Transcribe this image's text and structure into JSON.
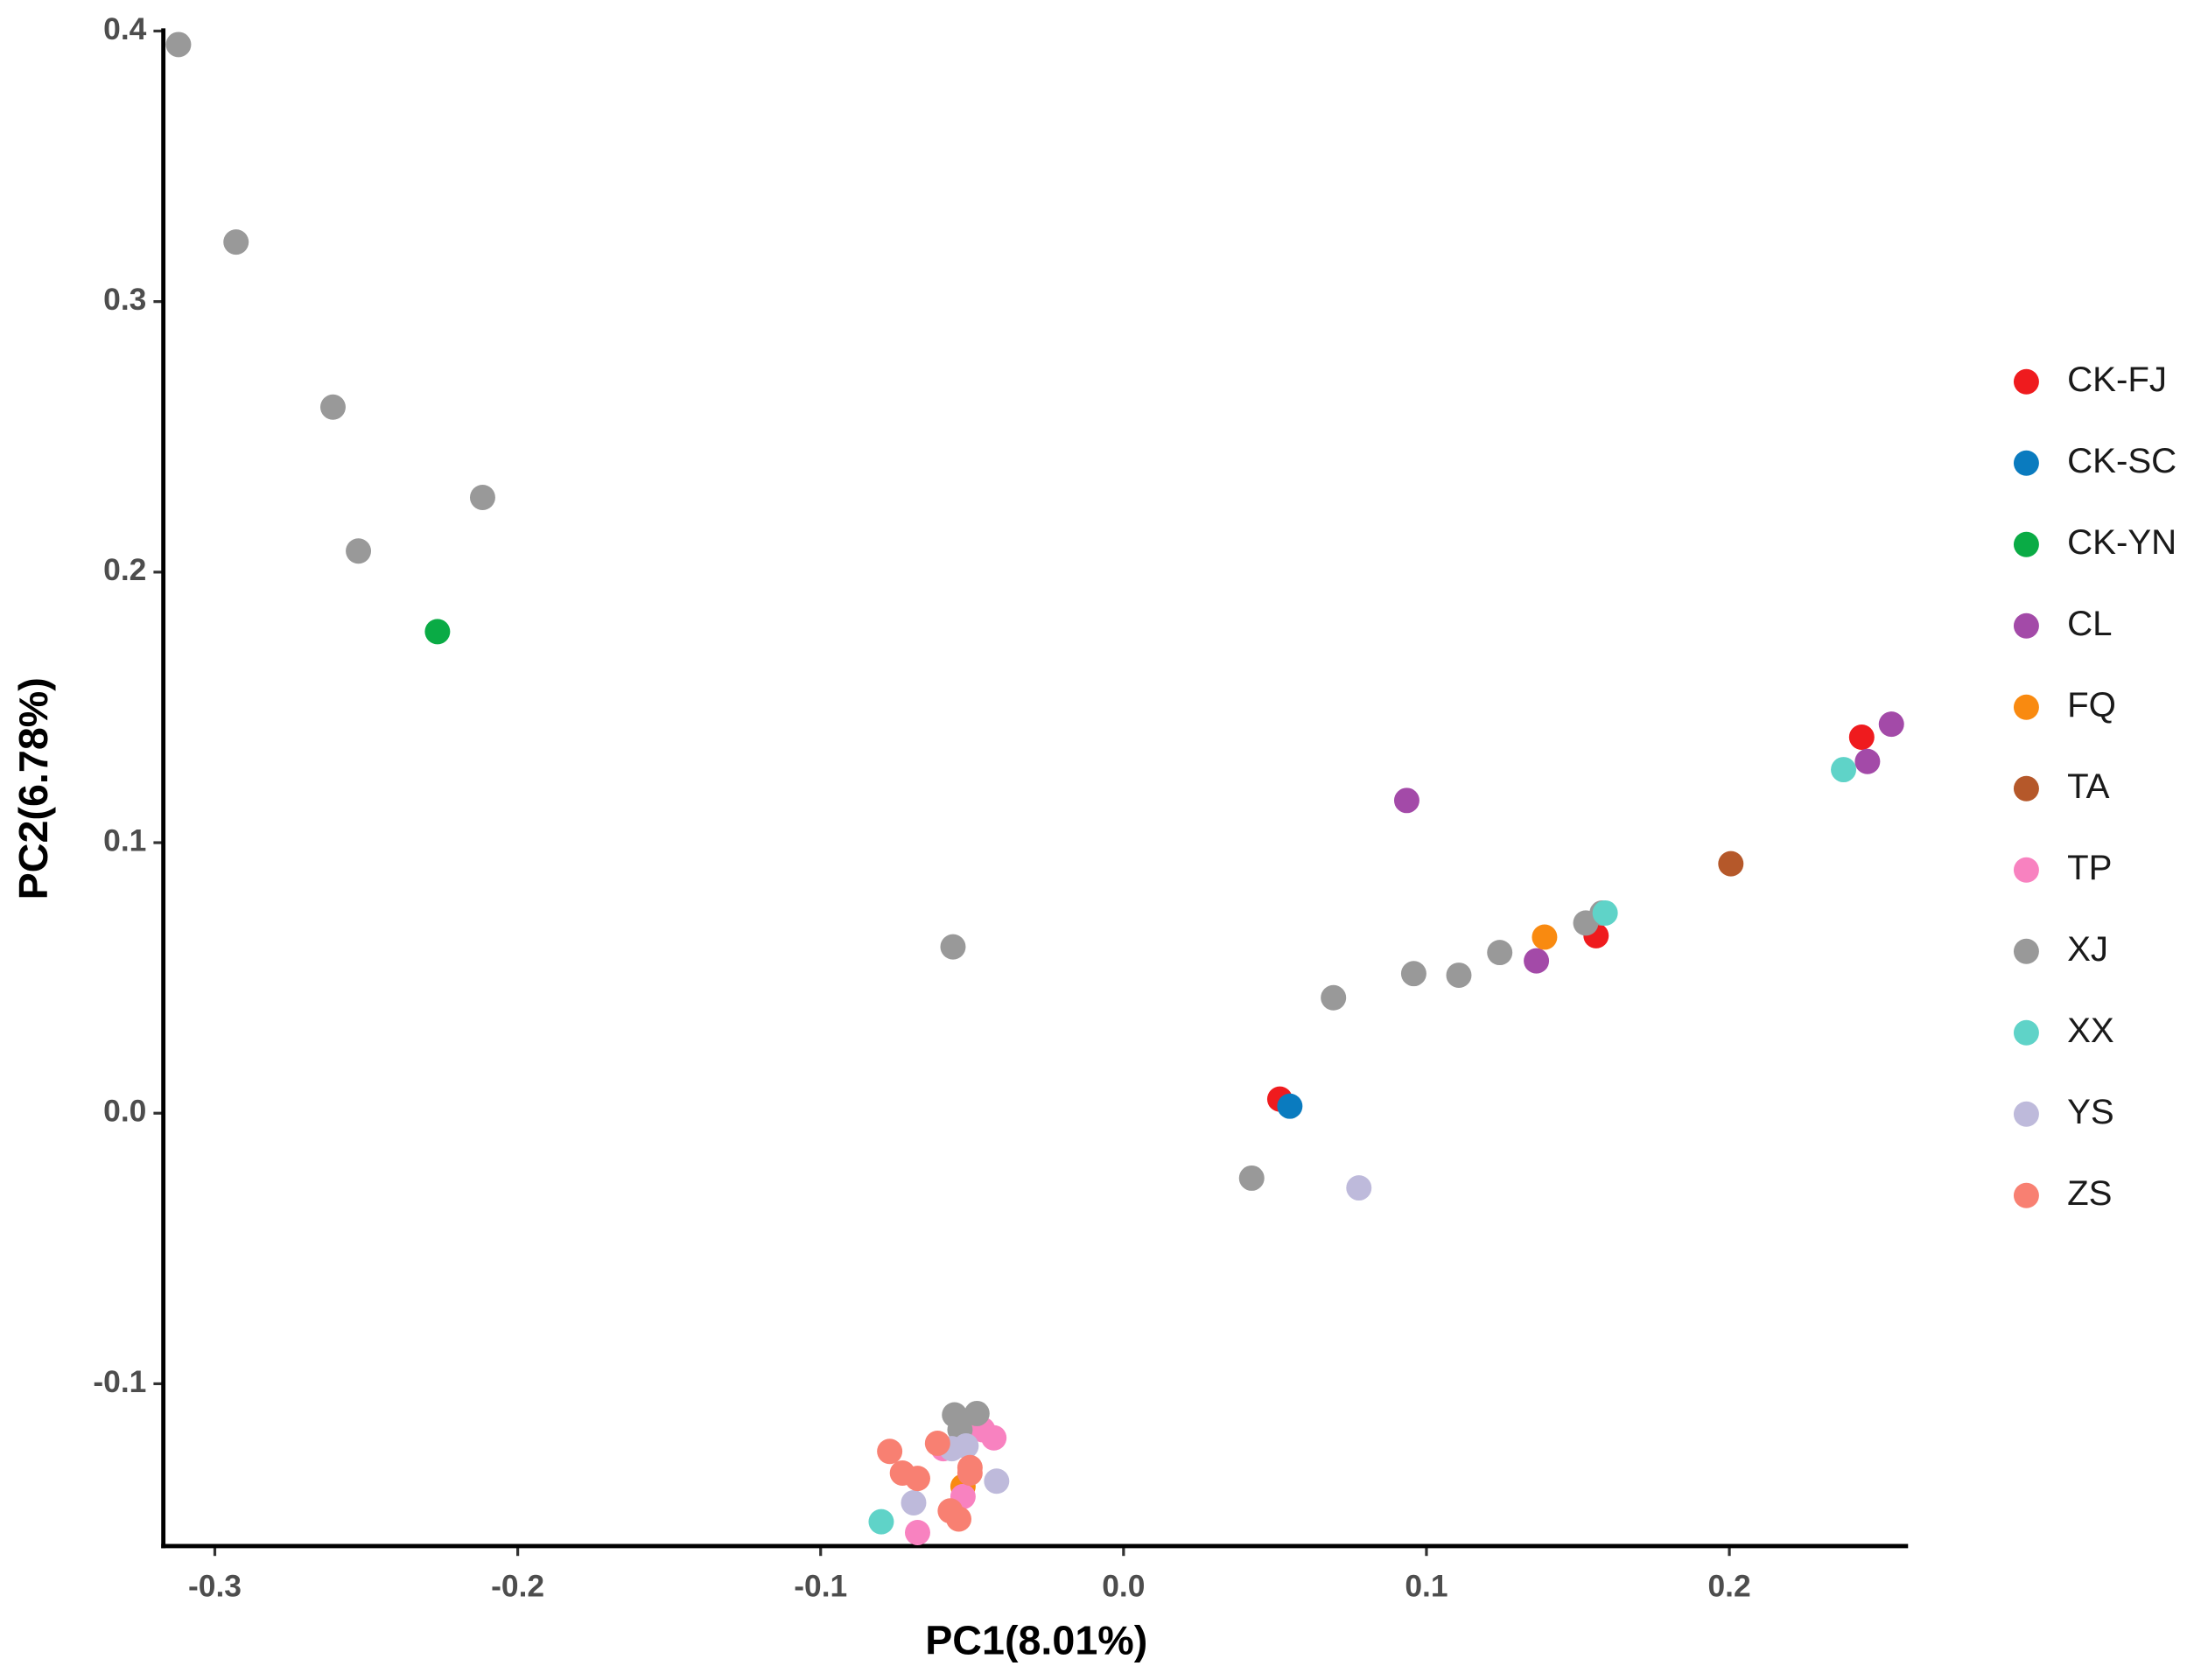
{
  "chart_data": {
    "type": "scatter",
    "x_label": "PC1(8.01%)",
    "y_label": "PC2(6.78%)",
    "xlim": [
      -0.317,
      0.259
    ],
    "ylim": [
      -0.16,
      0.401
    ],
    "xticks": [
      -0.3,
      -0.2,
      -0.1,
      {
        "value": 0,
        "label": "0.0"
      },
      0.1,
      0.2
    ],
    "yticks": [
      -0.1,
      {
        "value": 0,
        "label": "0.0"
      },
      0.1,
      0.2,
      0.3,
      0.4
    ],
    "grid": false,
    "legend": "right",
    "series": [
      {
        "name": "CK-FJ",
        "color": "#ef1b1e",
        "x": [
          0.0516,
          0.156,
          0.2437
        ],
        "y": [
          0.0052,
          0.0656,
          0.139
        ]
      },
      {
        "name": "CK-SC",
        "color": "#0a7bbf",
        "x": [
          0.0549
        ],
        "y": [
          0.0026
        ]
      },
      {
        "name": "CK-YN",
        "color": "#0aab45",
        "x": [
          -0.2265
        ],
        "y": [
          0.178
        ]
      },
      {
        "name": "CL",
        "color": "#a34aa8",
        "x": [
          0.0935,
          0.1363,
          0.2456,
          0.2535
        ],
        "y": [
          0.1156,
          0.0563,
          0.13,
          0.1438
        ]
      },
      {
        "name": "FQ",
        "color": "#f98a10",
        "x": [
          0.139,
          -0.053
        ],
        "y": [
          0.0651,
          -0.138
        ]
      },
      {
        "name": "TA",
        "color": "#b5582a",
        "x": [
          0.2005
        ],
        "y": [
          0.0922
        ]
      },
      {
        "name": "TP",
        "color": "#f882c0",
        "x": [
          -0.0428,
          -0.0465,
          -0.053,
          -0.068,
          -0.0595
        ],
        "y": [
          -0.12,
          -0.117,
          -0.1417,
          -0.155,
          -0.124
        ]
      },
      {
        "name": "XJ",
        "color": "#999999",
        "x": [
          -0.312,
          -0.293,
          -0.261,
          -0.2116,
          -0.2526,
          -0.0563,
          0.0693,
          0.0958,
          0.1107,
          0.1242,
          0.1526,
          0.158,
          0.0423,
          -0.0558,
          -0.0484,
          -0.054
        ],
        "y": [
          0.395,
          0.322,
          0.261,
          0.2276,
          0.2078,
          0.0615,
          0.0427,
          0.0516,
          0.051,
          0.0594,
          0.0703,
          0.074,
          -0.024,
          -0.1115,
          -0.111,
          -0.117
        ]
      },
      {
        "name": "XX",
        "color": "#5fd3c8",
        "x": [
          0.159,
          0.2377,
          -0.08
        ],
        "y": [
          0.074,
          0.127,
          -0.151
        ]
      },
      {
        "name": "YS",
        "color": "#bebadb",
        "x": [
          0.0777,
          -0.0419,
          -0.0693,
          -0.052,
          -0.0567
        ],
        "y": [
          -0.0276,
          -0.136,
          -0.144,
          -0.123,
          -0.124
        ]
      },
      {
        "name": "ZS",
        "color": "#f88072",
        "x": [
          -0.0772,
          -0.0614,
          -0.073,
          -0.068,
          -0.0507,
          -0.0507,
          -0.0572,
          -0.0544
        ],
        "y": [
          -0.125,
          -0.122,
          -0.133,
          -0.135,
          -0.131,
          -0.133,
          -0.147,
          -0.15
        ]
      }
    ]
  }
}
